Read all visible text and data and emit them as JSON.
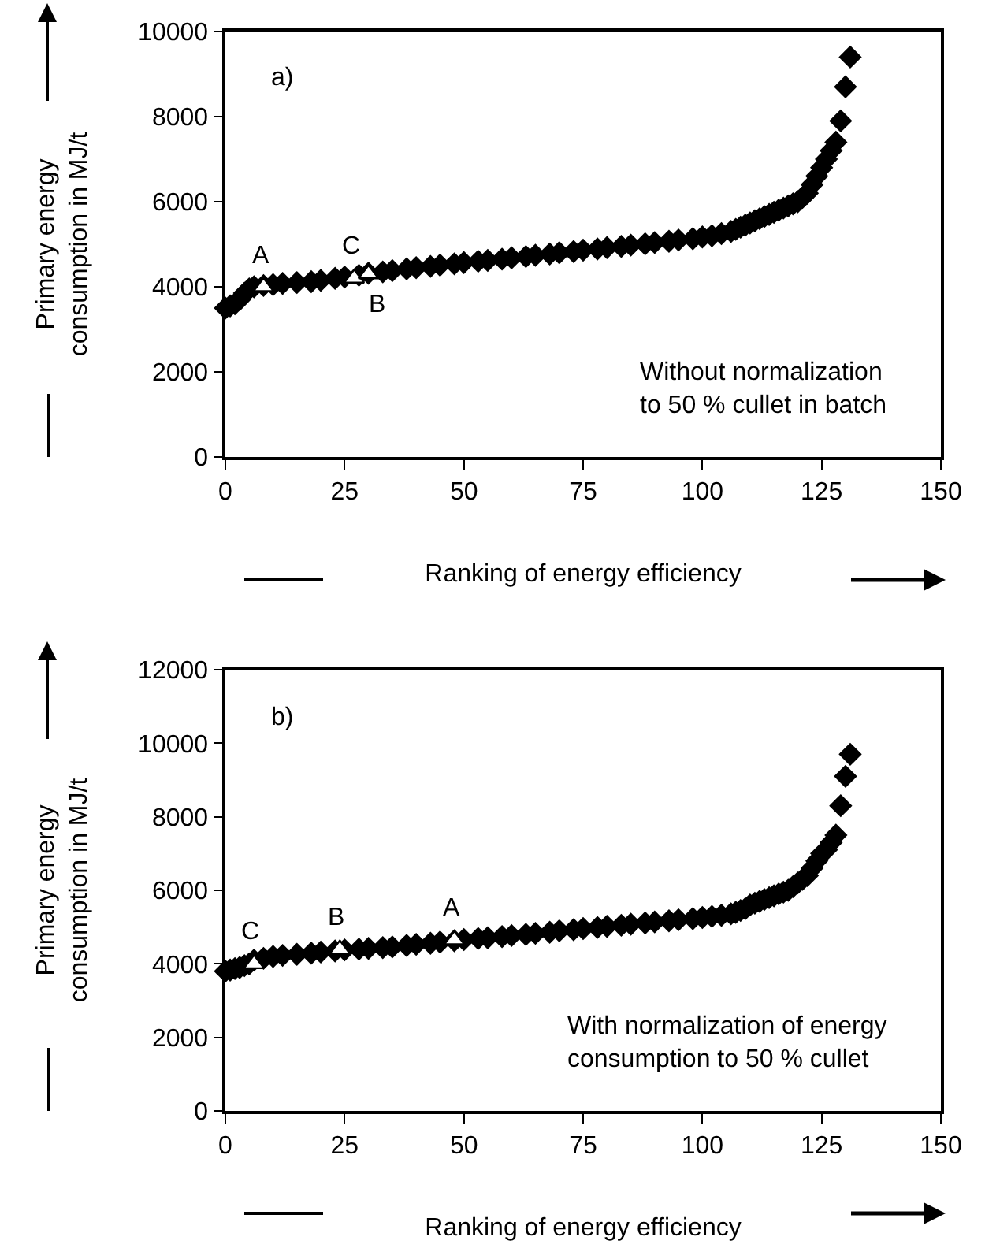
{
  "chart_data": [
    {
      "type": "scatter",
      "xlabel": "Ranking of energy efficiency",
      "ylabel": "Primary energy\nconsumption in MJ/t",
      "series": [
        {
          "color": "#000000",
          "marker": "diamond",
          "x": [
            0,
            1,
            2,
            3,
            4,
            5,
            6,
            8,
            10,
            12,
            15,
            18,
            20,
            23,
            25,
            28,
            30,
            33,
            35,
            38,
            40,
            43,
            45,
            48,
            50,
            53,
            55,
            58,
            60,
            63,
            65,
            68,
            70,
            73,
            75,
            78,
            80,
            83,
            85,
            88,
            90,
            93,
            95,
            98,
            100,
            102,
            104,
            106,
            107,
            108,
            109,
            110,
            111,
            112,
            113,
            114,
            115,
            116,
            117,
            118,
            119,
            120,
            121,
            122,
            123,
            124,
            125,
            126,
            127,
            128,
            129,
            130,
            131
          ],
          "values": [
            3500,
            3550,
            3600,
            3700,
            3850,
            3950,
            4000,
            4030,
            4050,
            4080,
            4100,
            4120,
            4150,
            4200,
            4230,
            4270,
            4320,
            4350,
            4380,
            4420,
            4450,
            4480,
            4510,
            4540,
            4570,
            4600,
            4620,
            4650,
            4680,
            4710,
            4740,
            4770,
            4800,
            4830,
            4860,
            4890,
            4920,
            4950,
            4980,
            5010,
            5040,
            5070,
            5100,
            5130,
            5170,
            5200,
            5250,
            5300,
            5350,
            5400,
            5450,
            5500,
            5550,
            5600,
            5650,
            5700,
            5750,
            5800,
            5850,
            5900,
            5950,
            6000,
            6100,
            6200,
            6400,
            6600,
            6800,
            7000,
            7200,
            7400,
            7900,
            8700,
            9400
          ]
        },
        {
          "color": "#ffffff",
          "marker": "triangle",
          "x": [
            8,
            27,
            30
          ],
          "values": [
            4000,
            4200,
            4300
          ]
        }
      ],
      "annotations": [
        "a)",
        "Without normalization\nto 50 % cullet in batch",
        {
          "text": "A",
          "x": 8,
          "y": 4000
        },
        {
          "text": "C",
          "x": 27,
          "y": 4200
        },
        {
          "text": "B",
          "x": 30,
          "y": 4300
        }
      ],
      "xlim": [
        0,
        150
      ],
      "xticks": [
        0,
        25,
        50,
        75,
        100,
        125,
        150
      ],
      "ylim": [
        0,
        10000
      ],
      "yticks": [
        0,
        2000,
        4000,
        6000,
        8000,
        10000
      ],
      "grid": false
    },
    {
      "type": "scatter",
      "xlabel": "Ranking of energy efficiency",
      "ylabel": "Primary energy\nconsumption in MJ/t",
      "series": [
        {
          "color": "#000000",
          "marker": "diamond",
          "x": [
            0,
            1,
            2,
            3,
            4,
            5,
            6,
            8,
            10,
            12,
            15,
            18,
            20,
            23,
            25,
            28,
            30,
            33,
            35,
            38,
            40,
            43,
            45,
            48,
            50,
            53,
            55,
            58,
            60,
            63,
            65,
            68,
            70,
            73,
            75,
            78,
            80,
            83,
            85,
            88,
            90,
            93,
            95,
            98,
            100,
            102,
            104,
            106,
            107,
            108,
            109,
            110,
            111,
            112,
            113,
            114,
            115,
            116,
            117,
            118,
            119,
            120,
            121,
            122,
            123,
            124,
            125,
            126,
            127,
            128,
            129,
            130,
            131
          ],
          "values": [
            3800,
            3830,
            3870,
            3900,
            3950,
            4000,
            4100,
            4150,
            4200,
            4230,
            4260,
            4290,
            4320,
            4350,
            4380,
            4400,
            4420,
            4440,
            4460,
            4500,
            4530,
            4560,
            4590,
            4630,
            4660,
            4690,
            4710,
            4740,
            4770,
            4800,
            4830,
            4860,
            4900,
            4930,
            4960,
            4990,
            5020,
            5050,
            5080,
            5110,
            5140,
            5170,
            5200,
            5230,
            5260,
            5290,
            5320,
            5360,
            5400,
            5450,
            5500,
            5600,
            5650,
            5700,
            5750,
            5800,
            5850,
            5900,
            5950,
            6000,
            6100,
            6200,
            6300,
            6400,
            6600,
            6800,
            7000,
            7100,
            7300,
            7500,
            8300,
            9100,
            9700
          ]
        },
        {
          "color": "#ffffff",
          "marker": "triangle",
          "x": [
            6,
            24,
            48
          ],
          "values": [
            4000,
            4400,
            4650
          ]
        }
      ],
      "annotations": [
        "b)",
        "With normalization of energy\nconsumption to 50 % cullet",
        {
          "text": "C",
          "x": 6,
          "y": 4000
        },
        {
          "text": "B",
          "x": 24,
          "y": 4400
        },
        {
          "text": "A",
          "x": 48,
          "y": 4650
        }
      ],
      "xlim": [
        0,
        150
      ],
      "xticks": [
        0,
        25,
        50,
        75,
        100,
        125,
        150
      ],
      "ylim": [
        0,
        12000
      ],
      "yticks": [
        0,
        2000,
        4000,
        6000,
        8000,
        10000,
        12000
      ],
      "grid": false
    }
  ]
}
